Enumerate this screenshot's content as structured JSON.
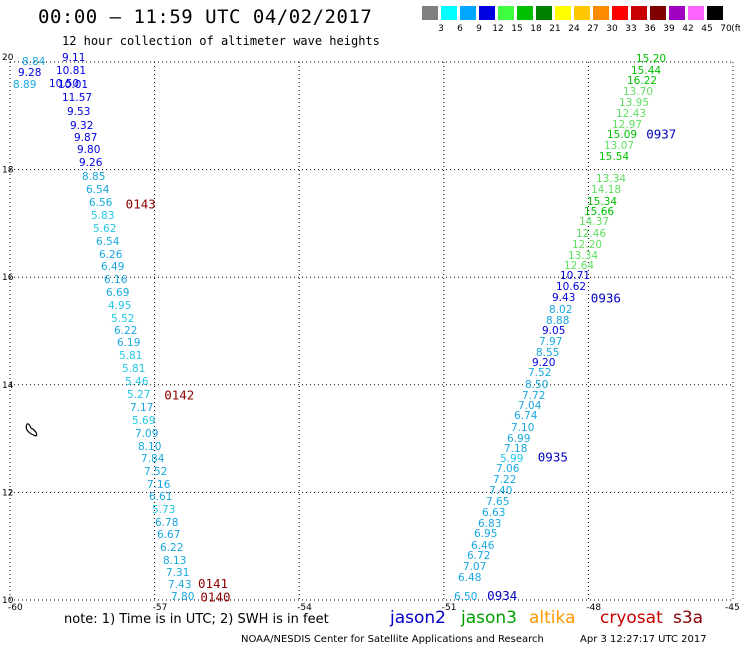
{
  "header": {
    "title": "00:00 – 11:59 UTC 04/02/2017",
    "subtitle": "12 hour collection of altimeter wave heights"
  },
  "colorbar": {
    "unit": "(ft)",
    "swatches": [
      {
        "label": "3",
        "color": "#808080"
      },
      {
        "label": "6",
        "color": "#00ffff"
      },
      {
        "label": "9",
        "color": "#00a6ff"
      },
      {
        "label": "12",
        "color": "#0000e0"
      },
      {
        "label": "15",
        "color": "#40ff40"
      },
      {
        "label": "18",
        "color": "#00c000"
      },
      {
        "label": "21",
        "color": "#008000"
      },
      {
        "label": "24",
        "color": "#ffff00"
      },
      {
        "label": "27",
        "color": "#ffc800"
      },
      {
        "label": "30",
        "color": "#ff8c00"
      },
      {
        "label": "33",
        "color": "#ff0000"
      },
      {
        "label": "36",
        "color": "#c80000"
      },
      {
        "label": "39",
        "color": "#800000"
      },
      {
        "label": "42",
        "color": "#a000c0"
      },
      {
        "label": "45",
        "color": "#ff64ff"
      },
      {
        "label": "70",
        "color": "#000000"
      }
    ]
  },
  "axes": {
    "x_ticks": [
      "-60",
      "-57",
      "-54",
      "-51",
      "-48",
      "-45"
    ],
    "y_ticks": [
      "20",
      "18",
      "16",
      "14",
      "12",
      "10"
    ]
  },
  "pass_labels": [
    {
      "text": "0143",
      "lon": -57.6,
      "lat": 17.35,
      "color": "#8b0000"
    },
    {
      "text": "0142",
      "lon": -56.8,
      "lat": 13.8,
      "color": "#8b0000"
    },
    {
      "text": "0141",
      "lon": -56.1,
      "lat": 10.3,
      "color": "#8b0000"
    },
    {
      "text": "0140",
      "lon": -56.05,
      "lat": 10.05,
      "color": "#8b0000"
    },
    {
      "text": "0937",
      "lon": -46.8,
      "lat": 18.65,
      "color": "#0000c0"
    },
    {
      "text": "0936",
      "lon": -47.95,
      "lat": 15.6,
      "color": "#0000c0"
    },
    {
      "text": "0935",
      "lon": -49.05,
      "lat": 12.65,
      "color": "#0000c0"
    },
    {
      "text": "0934",
      "lon": -50.1,
      "lat": 10.07,
      "color": "#0000c0"
    }
  ],
  "west_track_values": [
    "8.84",
    "9.11",
    "9.28",
    "10.81",
    "8.89",
    "10.50",
    "10.01",
    "11.57",
    "9.53",
    "9.32",
    "9.87",
    "9.80",
    "9.26",
    "8.85",
    "6.54",
    "6.56",
    "5.83",
    "5.62",
    "6.54",
    "6.26",
    "6.49",
    "6.16",
    "6.69",
    "4.95",
    "5.52",
    "6.22",
    "6.19",
    "5.81",
    "5.81",
    "5.46",
    "5.27",
    "7.17",
    "5.69",
    "7.09",
    "8.10",
    "7.84",
    "7.52",
    "7.16",
    "6.61",
    "5.73",
    "6.78",
    "6.67",
    "6.22",
    "8.13",
    "7.31",
    "7.43",
    "7.80"
  ],
  "east_track_values": [
    "15.20",
    "15.44",
    "16.22",
    "13.70",
    "13.95",
    "12.43",
    "12.97",
    "15.09",
    "13.07",
    "15.54",
    "13.34",
    "14.18",
    "15.34",
    "15.66",
    "14.37",
    "12.46",
    "12.20",
    "13.34",
    "12.64",
    "10.71",
    "10.62",
    "9.43",
    "8.02",
    "8.88",
    "9.05",
    "7.97",
    "8.55",
    "9.20",
    "7.52",
    "8.50",
    "7.72",
    "7.04",
    "6.74",
    "7.10",
    "6.99",
    "7.18",
    "5.99",
    "7.06",
    "7.22",
    "7.40",
    "7.65",
    "6.63",
    "6.83",
    "6.95",
    "6.46",
    "6.72",
    "7.07",
    "6.48",
    "6.50"
  ],
  "legend": {
    "note": "note:  1) Time is in UTC;  2) SWH is in feet",
    "jason2": {
      "label": "jason2",
      "color": "#0000c8"
    },
    "jason3": {
      "label": "jason3",
      "color": "#00a000"
    },
    "altika": {
      "label": "altika",
      "color": "#ff9900"
    },
    "cryosat": {
      "label": "cryosat",
      "color": "#c80000"
    },
    "s3a": {
      "label": "s3a",
      "color": "#8b0000"
    }
  },
  "footer": {
    "credit": "NOAA/NESDIS Center for Satellite Applications and Research",
    "timestamp": "Apr  3 12:27:17 UTC 2017"
  }
}
